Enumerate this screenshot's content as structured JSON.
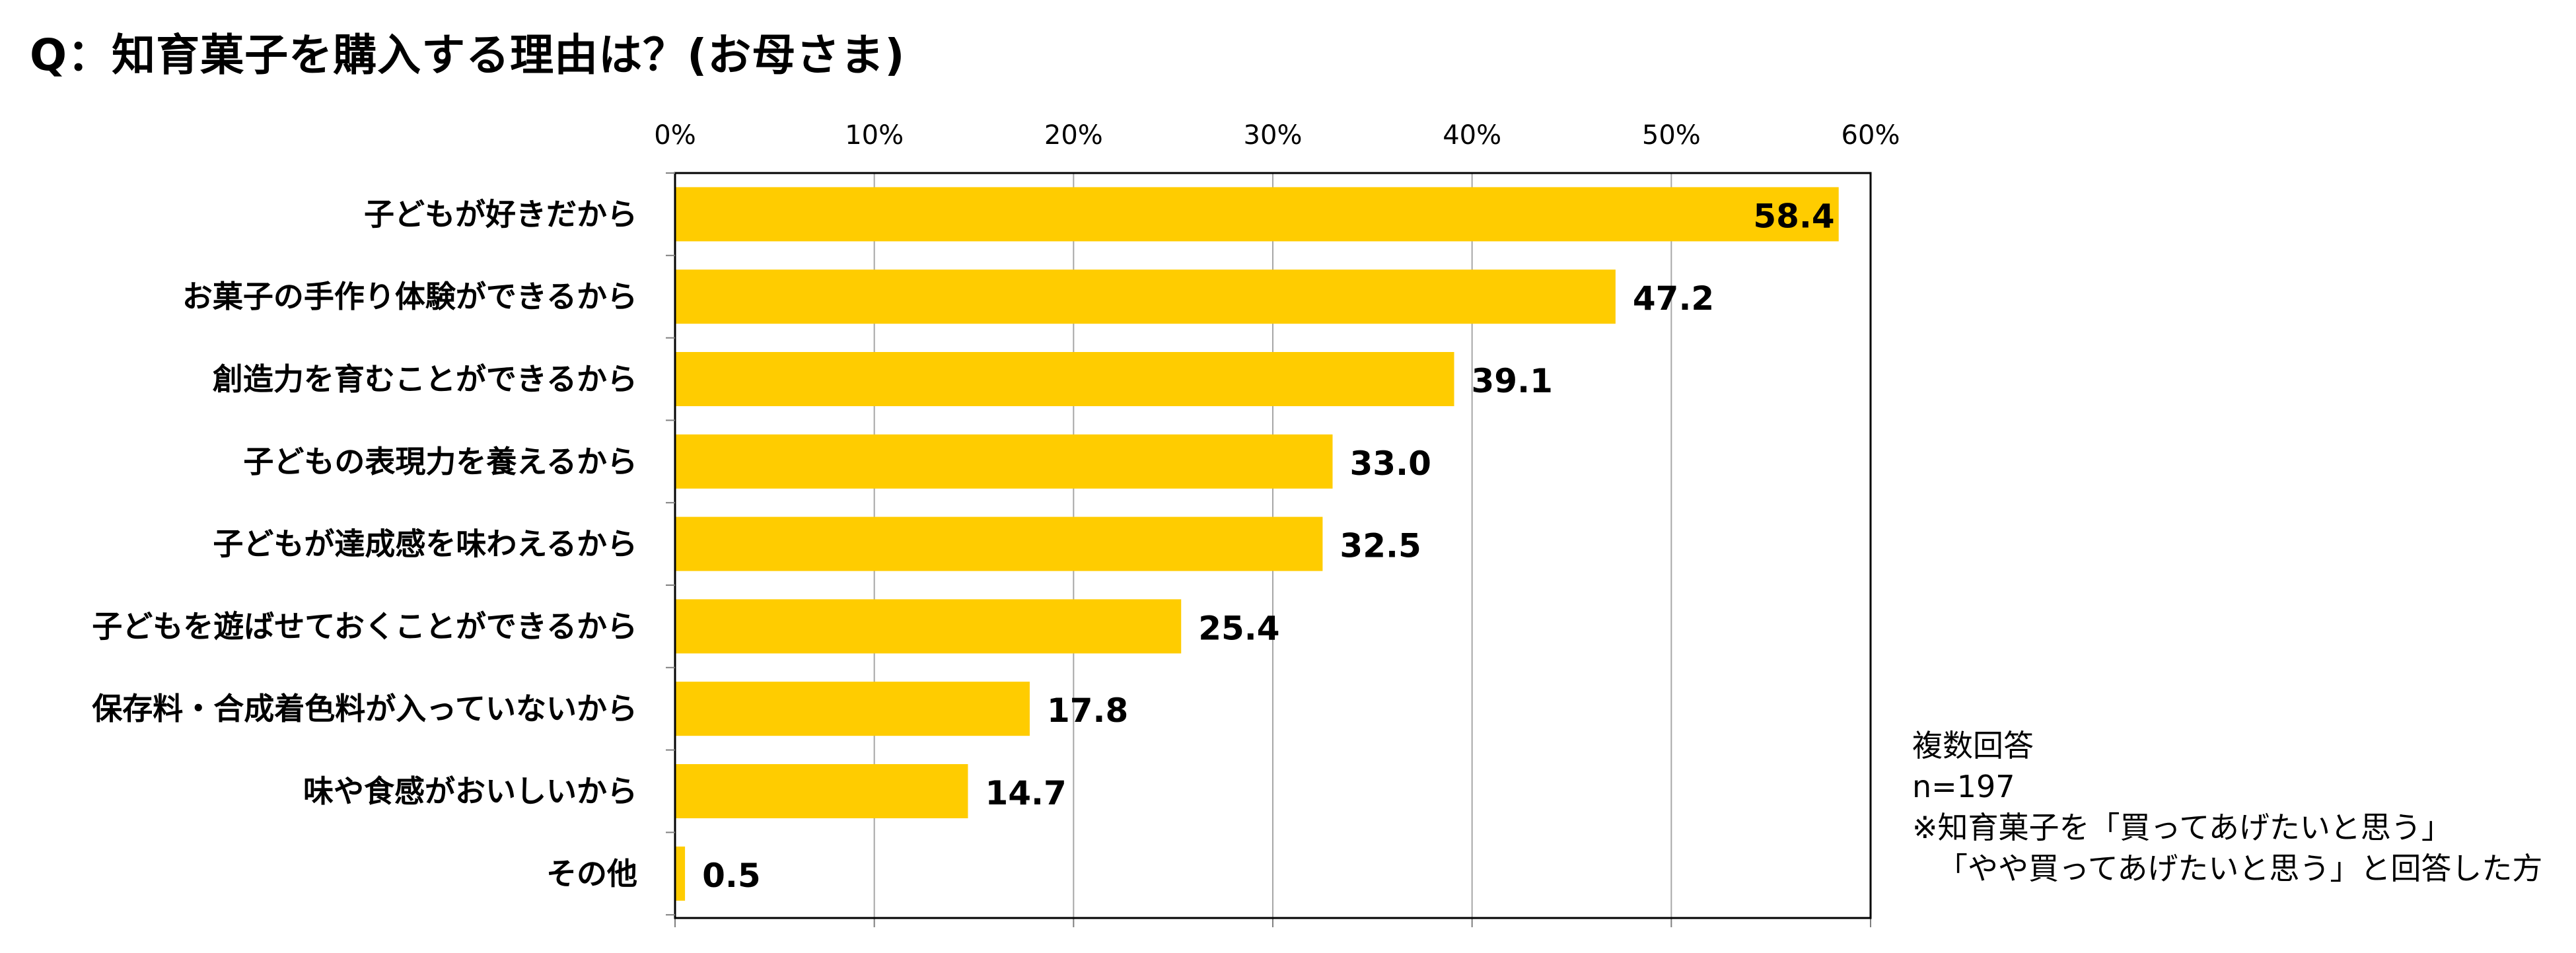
{
  "title": "Q：知育菓子を購入する理由は？(お母さま)",
  "notes": {
    "line1": "複数回答",
    "line2": "n=197",
    "line3": "※知育菓子を「買ってあげたいと思う」",
    "line4": "「やや買ってあげたいと思う」と回答した方"
  },
  "colors": {
    "bar": "#FFCC00",
    "grid": "#A6A6A6",
    "axis": "#808080",
    "frame": "#000000"
  },
  "chart_data": {
    "type": "bar",
    "orientation": "horizontal",
    "title": "Q：知育菓子を購入する理由は？(お母さま)",
    "xlabel": "",
    "ylabel": "",
    "xlim": [
      0,
      60
    ],
    "x_ticks": [
      0,
      10,
      20,
      30,
      40,
      50,
      60
    ],
    "tick_labels": [
      "0%",
      "10%",
      "20%",
      "30%",
      "40%",
      "50%",
      "60%"
    ],
    "categories": [
      "子どもが好きだから",
      "お菓子の手作り体験ができるから",
      "創造力を育むことができるから",
      "子どもの表現力を養えるから",
      "子どもが達成感を味わえるから",
      "子どもを遊ばせておくことができるから",
      "保存料・合成着色料が入っていないから",
      "味や食感がおいしいから",
      "その他"
    ],
    "values": [
      58.4,
      47.2,
      39.1,
      33.0,
      32.5,
      25.4,
      17.8,
      14.7,
      0.5
    ],
    "data_labels": [
      "58.4",
      "47.2",
      "39.1",
      "33.0",
      "32.5",
      "25.4",
      "17.8",
      "14.7",
      "0.5"
    ],
    "grid": true,
    "legend": "none"
  }
}
